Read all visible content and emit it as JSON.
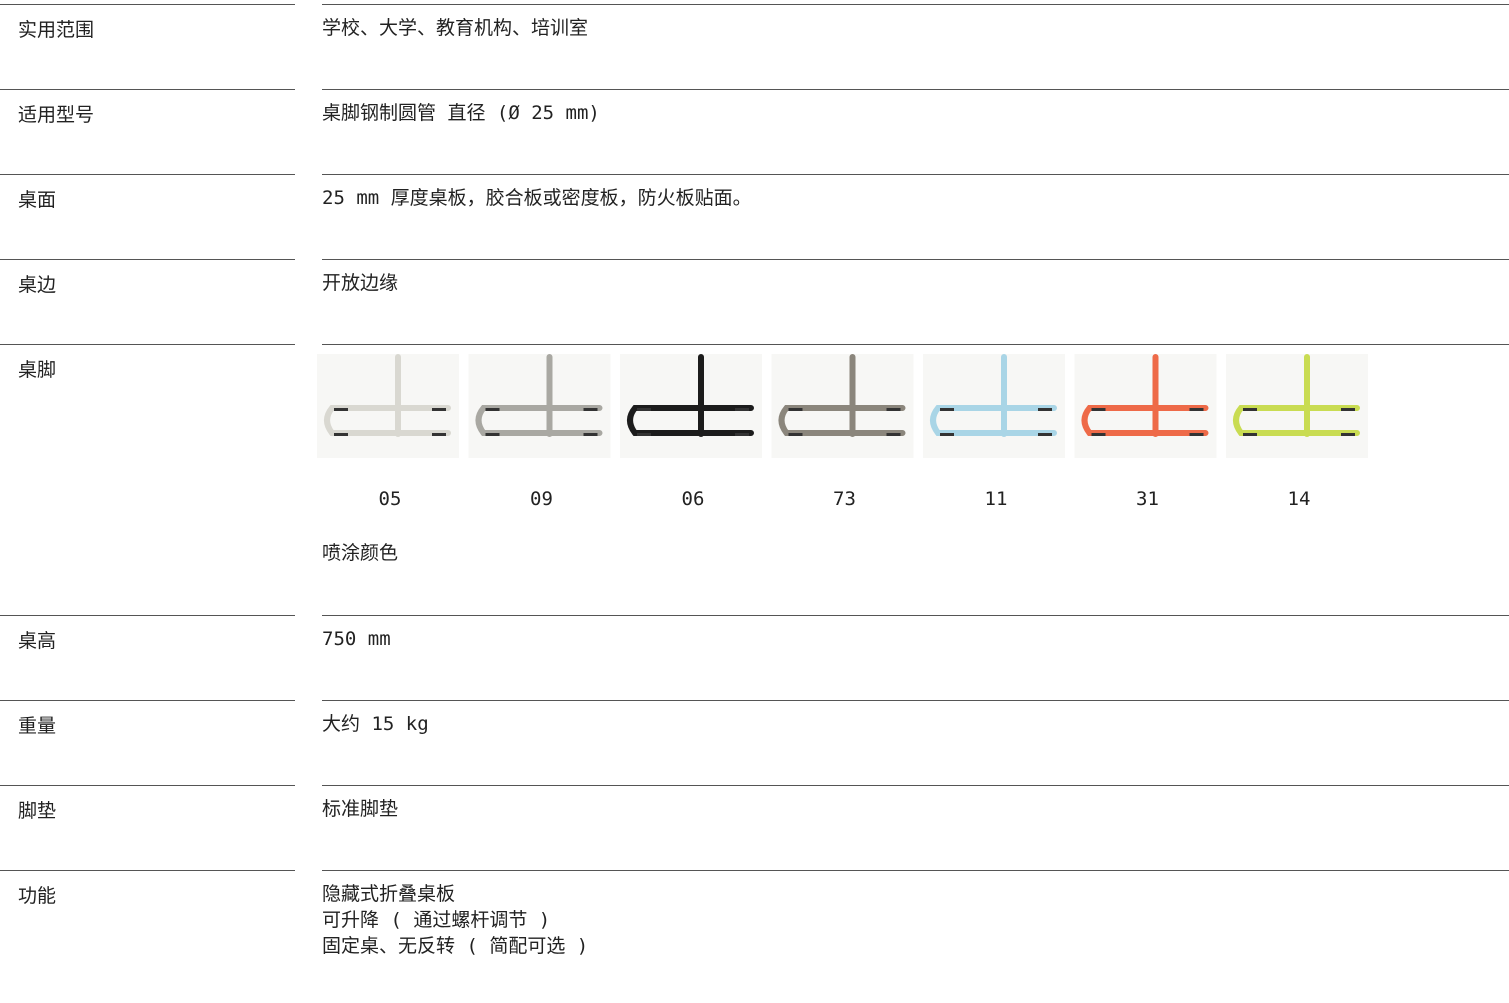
{
  "rows": [
    {
      "label": "实用范围",
      "value": [
        "学校、大学、教育机构、培训室"
      ]
    },
    {
      "label": "适用型号",
      "value": [
        "桌脚钢制圆管 直径 (Ø 25 mm)"
      ]
    },
    {
      "label": "桌面",
      "value": [
        "25 mm 厚度桌板，胶合板或密度板，防火板贴面。"
      ]
    },
    {
      "label": "桌边",
      "value": [
        "开放边缘"
      ]
    },
    {
      "label": "桌脚",
      "swatches": [
        {
          "code": "05",
          "color": "#d9d8d1"
        },
        {
          "code": "09",
          "color": "#a9a8a2"
        },
        {
          "code": "06",
          "color": "#1c1c1c"
        },
        {
          "code": "73",
          "color": "#8b867c"
        },
        {
          "code": "11",
          "color": "#a9d5e6"
        },
        {
          "code": "31",
          "color": "#ee6a48"
        },
        {
          "code": "14",
          "color": "#c9dc52"
        }
      ],
      "note": "喷涂颜色"
    },
    {
      "label": "桌高",
      "value": [
        "750 mm"
      ]
    },
    {
      "label": "重量",
      "value": [
        "大约 15 kg"
      ]
    },
    {
      "label": "脚垫",
      "value": [
        "标准脚垫"
      ]
    },
    {
      "label": "功能",
      "value": [
        "隐藏式折叠桌板",
        "可升降 ( 通过螺杆调节 )",
        "固定桌、无反转 ( 简配可选 )"
      ]
    }
  ]
}
